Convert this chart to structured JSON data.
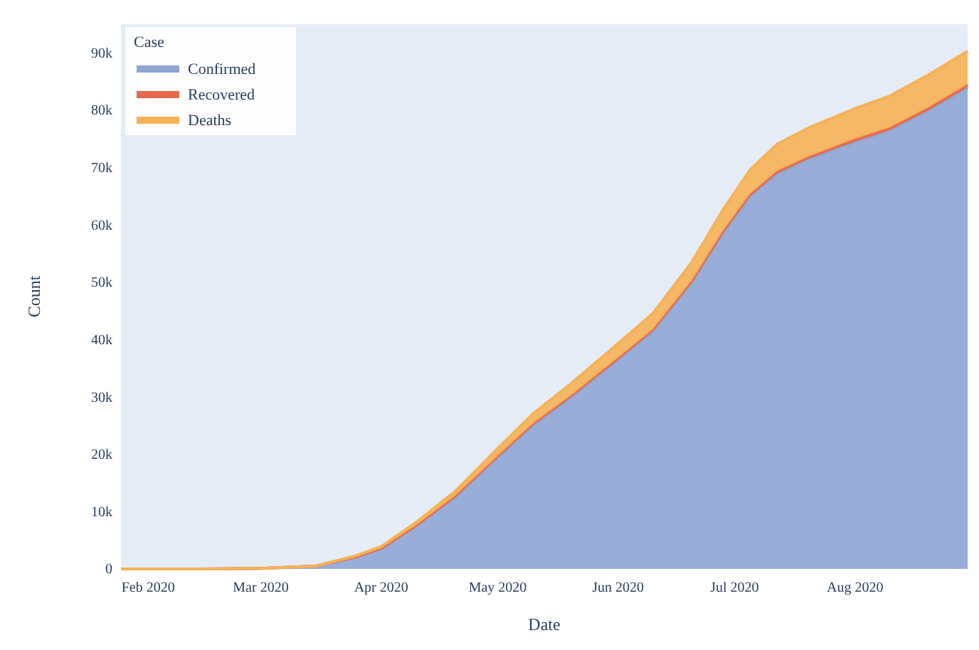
{
  "chart_data": {
    "type": "area",
    "stacked": true,
    "xlabel": "Date",
    "ylabel": "Count",
    "legend_title": "Case",
    "legend": "top left",
    "grid": false,
    "x": [
      "2020-01-25",
      "2020-02-15",
      "2020-03-01",
      "2020-03-15",
      "2020-03-25",
      "2020-04-01",
      "2020-04-10",
      "2020-04-20",
      "2020-05-01",
      "2020-05-10",
      "2020-05-20",
      "2020-06-01",
      "2020-06-10",
      "2020-06-20",
      "2020-06-28",
      "2020-07-05",
      "2020-07-12",
      "2020-07-20",
      "2020-08-01",
      "2020-08-10",
      "2020-08-20",
      "2020-08-30"
    ],
    "series": [
      {
        "name": "Confirmed",
        "color": "#8fa6d5",
        "values": [
          0,
          0,
          100,
          500,
          2000,
          3500,
          7500,
          12500,
          19500,
          25000,
          30000,
          36500,
          41500,
          50000,
          58500,
          65000,
          69000,
          71500,
          74500,
          76500,
          80000,
          84000
        ]
      },
      {
        "name": "Recovered",
        "color": "#e5694f",
        "values": [
          0,
          0,
          0,
          0,
          0,
          100,
          100,
          200,
          200,
          300,
          300,
          300,
          300,
          300,
          400,
          400,
          400,
          400,
          500,
          500,
          500,
          500
        ]
      },
      {
        "name": "Deaths",
        "color": "#f6b256",
        "values": [
          0,
          0,
          0,
          0,
          200,
          300,
          500,
          800,
          1300,
          1700,
          2100,
          2500,
          2800,
          3200,
          3700,
          4200,
          4700,
          5000,
          5300,
          5500,
          5700,
          5800
        ]
      }
    ],
    "xlim": [
      "2020-01-25",
      "2020-08-30"
    ],
    "xticks": [
      {
        "value": "2020-02-01",
        "label": "Feb 2020"
      },
      {
        "value": "2020-03-01",
        "label": "Mar 2020"
      },
      {
        "value": "2020-04-01",
        "label": "Apr 2020"
      },
      {
        "value": "2020-05-01",
        "label": "May 2020"
      },
      {
        "value": "2020-06-01",
        "label": "Jun 2020"
      },
      {
        "value": "2020-07-01",
        "label": "Jul 2020"
      },
      {
        "value": "2020-08-01",
        "label": "Aug 2020"
      }
    ],
    "ylim": [
      0,
      95000
    ],
    "yticks": [
      0,
      {
        "value": 10000,
        "label": "10k"
      },
      {
        "value": 20000,
        "label": "20k"
      },
      {
        "value": 30000,
        "label": "30k"
      },
      {
        "value": 40000,
        "label": "40k"
      },
      {
        "value": 50000,
        "label": "50k"
      },
      {
        "value": 60000,
        "label": "60k"
      },
      {
        "value": 70000,
        "label": "70k"
      },
      {
        "value": 80000,
        "label": "80k"
      },
      {
        "value": 90000,
        "label": "90k"
      }
    ]
  }
}
